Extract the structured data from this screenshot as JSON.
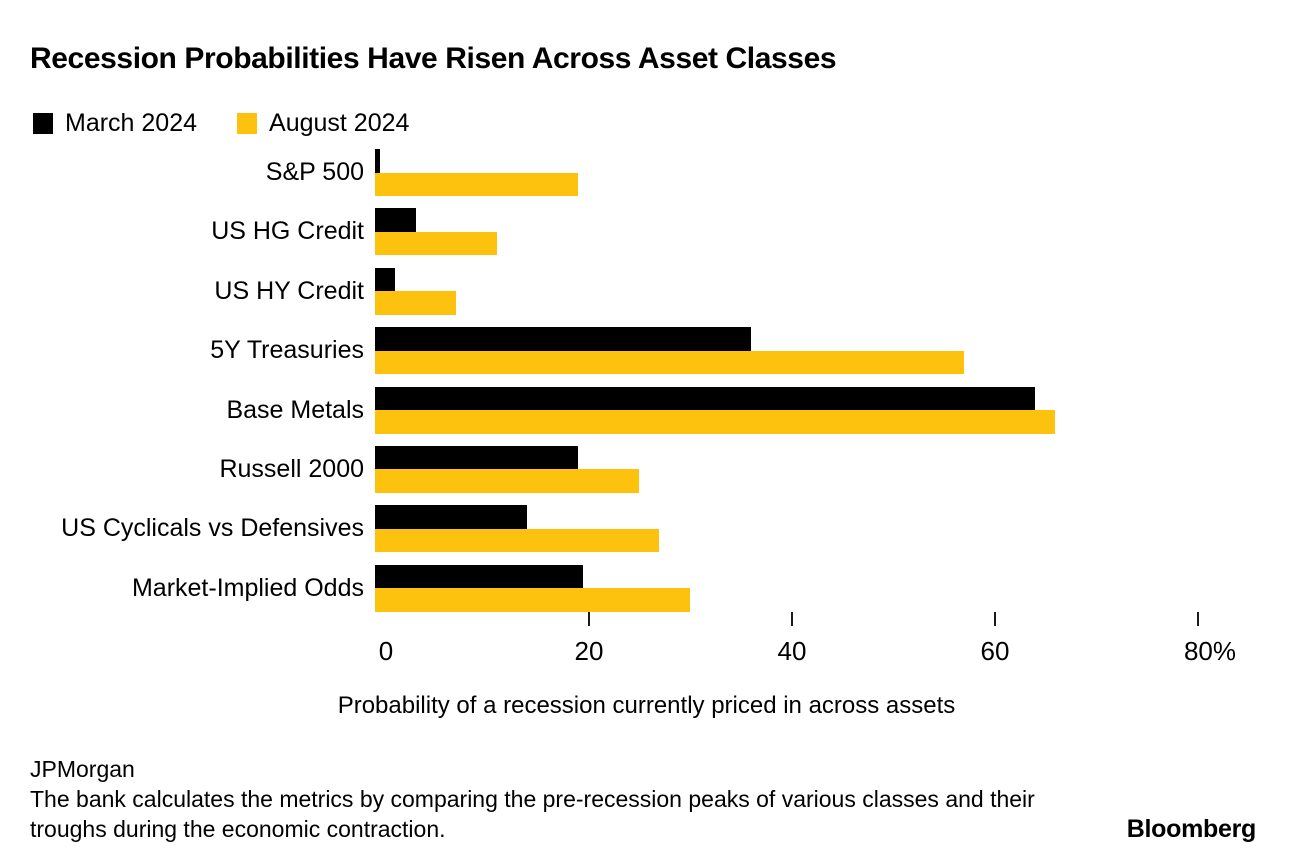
{
  "header": {
    "title": "Recession Probabilities Have Risen Across Asset Classes"
  },
  "chart_data": {
    "type": "bar",
    "orientation": "horizontal",
    "title": "Recession Probabilities Have Risen Across Asset Classes",
    "categories": [
      "S&P 500",
      "US HG Credit",
      "US HY Credit",
      "5Y Treasuries",
      "Base Metals",
      "Russell 2000",
      "US Cyclicals vs Defensives",
      "Market-Implied Odds"
    ],
    "series": [
      {
        "name": "March 2024",
        "color": "#000000",
        "values": [
          0.5,
          4,
          2,
          37,
          65,
          20,
          15,
          20.5
        ]
      },
      {
        "name": "August 2024",
        "color": "#FDC20E",
        "values": [
          20,
          12,
          8,
          58,
          67,
          26,
          28,
          31
        ]
      }
    ],
    "xlabel": "Probability of a recession currently priced in across assets",
    "ylabel": "",
    "x_ticks": [
      0,
      20,
      40,
      60,
      80
    ],
    "x_tick_labels": [
      "0",
      "20",
      "40",
      "60",
      "80%"
    ],
    "xlim": [
      0,
      85
    ],
    "grid": "off",
    "legend_position": "top-left"
  },
  "footer": {
    "source": "JPMorgan",
    "note": "The bank calculates the metrics by comparing the pre-recession peaks of various classes and their troughs during the economic contraction.",
    "brand": "Bloomberg"
  }
}
